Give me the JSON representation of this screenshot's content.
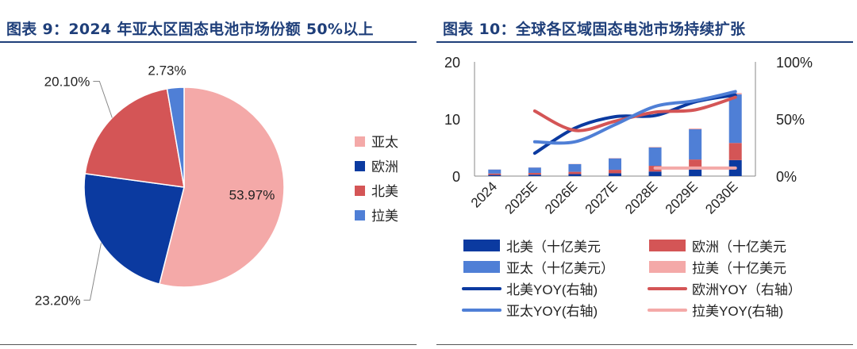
{
  "left": {
    "title": "图表 9：2024 年亚太区固态电池市场份额 50%以上",
    "chart_data": {
      "type": "pie",
      "title": "图表 9：2024 年亚太区固态电池市场份额 50%以上",
      "slices": [
        {
          "name": "亚太",
          "value": 53.97,
          "label": "53.97%",
          "color": "#f4a9a8"
        },
        {
          "name": "欧洲",
          "value": 23.2,
          "label": "23.20%",
          "color": "#0b3aa0"
        },
        {
          "name": "北美",
          "value": 20.1,
          "label": "20.10%",
          "color": "#d45556"
        },
        {
          "name": "拉美",
          "value": 2.73,
          "label": "2.73%",
          "color": "#4f7fd6"
        }
      ],
      "legend": [
        "亚太",
        "欧洲",
        "北美",
        "拉美"
      ],
      "legend_position": "right"
    }
  },
  "right": {
    "title": "图表 10：全球各区域固态电池市场持续扩张",
    "chart_data": {
      "type": "bar",
      "stacked": true,
      "title": "图表 10：全球各区域固态电池市场持续扩张",
      "categories": [
        "2024",
        "2025E",
        "2026E",
        "2027E",
        "2028E",
        "2029E",
        "2030E"
      ],
      "ylim": [
        0,
        20
      ],
      "yticks": [
        "0",
        "10",
        "20"
      ],
      "y2lim": [
        0,
        100
      ],
      "y2ticks": [
        "0%",
        "50%",
        "100%"
      ],
      "series": [
        {
          "name": "北美（十亿美元",
          "axis": "left",
          "color": "#0b3aa0",
          "values": [
            0.2,
            0.25,
            0.35,
            0.5,
            0.8,
            1.3,
            2.8
          ]
        },
        {
          "name": "欧洲（十亿美元",
          "axis": "left",
          "color": "#d45556",
          "values": [
            0.25,
            0.3,
            0.4,
            0.6,
            1.0,
            1.6,
            3.0
          ]
        },
        {
          "name": "亚太（十亿美元）",
          "axis": "left",
          "color": "#4f7fd6",
          "values": [
            0.7,
            0.95,
            1.35,
            2.0,
            3.2,
            5.3,
            8.5
          ]
        },
        {
          "name": "拉美（十亿美元",
          "axis": "left",
          "color": "#f4a9a8",
          "values": [
            0.02,
            0.03,
            0.04,
            0.06,
            0.1,
            0.15,
            0.25
          ]
        }
      ],
      "lines": [
        {
          "name": "北美YOY(右轴)",
          "axis": "right",
          "color": "#0b3aa0",
          "x": [
            "2025E",
            "2026E",
            "2027E",
            "2028E",
            "2029E",
            "2030E"
          ],
          "values": [
            20,
            42,
            52,
            53,
            65,
            71
          ]
        },
        {
          "name": "欧洲YOY（右轴）",
          "axis": "right",
          "color": "#d45556",
          "x": [
            "2025E",
            "2026E",
            "2027E",
            "2028E",
            "2029E",
            "2030E"
          ],
          "values": [
            57,
            40,
            48,
            56,
            58,
            69
          ]
        },
        {
          "name": "亚太YOY(右轴)",
          "axis": "right",
          "color": "#4f7fd6",
          "x": [
            "2025E",
            "2026E",
            "2027E",
            "2028E",
            "2029E",
            "2030E"
          ],
          "values": [
            30,
            30,
            45,
            61,
            66,
            74
          ]
        },
        {
          "name": "拉美YOY(右轴)",
          "axis": "right",
          "color": "#f4a9a8",
          "x": [
            "2028E",
            "2029E",
            "2030E"
          ],
          "values": [
            7,
            7,
            7
          ]
        }
      ],
      "legend": [
        "北美（十亿美元",
        "欧洲（十亿美元",
        "亚太（十亿美元）",
        "拉美（十亿美元",
        "北美YOY(右轴)",
        "欧洲YOY（右轴）",
        "亚太YOY(右轴)",
        "拉美YOY(右轴)"
      ],
      "legend_position": "bottom"
    }
  }
}
